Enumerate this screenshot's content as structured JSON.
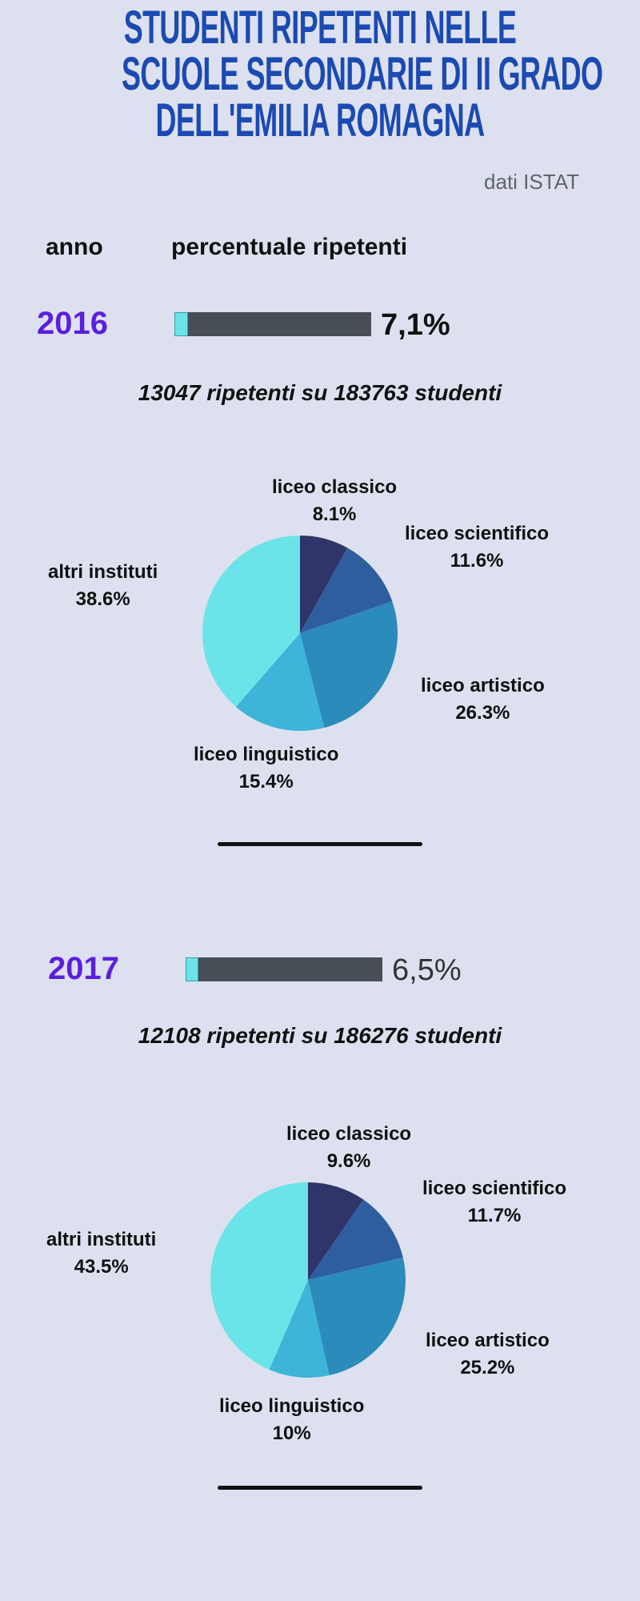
{
  "title_lines": [
    "STUDENTI RIPETENTI NELLE",
    "SCUOLE SECONDARIE DI II GRADO",
    "DELL'EMILIA ROMAGNA"
  ],
  "source": "dati ISTAT",
  "headers": {
    "year": "anno",
    "percent": "percentuale ripetenti"
  },
  "colors": {
    "background": "#dde1ef",
    "title": "#1b4ab2",
    "year": "#5a1fdc",
    "bar_track": "#474e56",
    "bar_fill": "#6be4e9"
  },
  "years": [
    {
      "year": "2016",
      "percent_label": "7,1%",
      "percent_value": 7.1,
      "summary": "13047 ripetenti su 183763 studenti"
    },
    {
      "year": "2017",
      "percent_label": "6,5%",
      "percent_value": 6.5,
      "summary": "12108 ripetenti su 186276 studenti"
    }
  ],
  "chart_data": [
    {
      "type": "pie",
      "year": "2016",
      "slices": [
        {
          "label": "liceo classico",
          "value": 8.1,
          "value_label": "8.1%",
          "color": "#2f3469"
        },
        {
          "label": "liceo scientifico",
          "value": 11.6,
          "value_label": "11.6%",
          "color": "#2e5e9e"
        },
        {
          "label": "liceo artistico",
          "value": 26.3,
          "value_label": "26.3%",
          "color": "#2b8bbb"
        },
        {
          "label": "liceo linguistico",
          "value": 15.4,
          "value_label": "15.4%",
          "color": "#3eb4d8"
        },
        {
          "label": "altri instituti",
          "value": 38.6,
          "value_label": "38.6%",
          "color": "#6be4e9"
        }
      ]
    },
    {
      "type": "pie",
      "year": "2017",
      "slices": [
        {
          "label": "liceo classico",
          "value": 9.6,
          "value_label": "9.6%",
          "color": "#2f3469"
        },
        {
          "label": "liceo scientifico",
          "value": 11.7,
          "value_label": "11.7%",
          "color": "#2e5e9e"
        },
        {
          "label": "liceo artistico",
          "value": 25.2,
          "value_label": "25.2%",
          "color": "#2b8bbb"
        },
        {
          "label": "liceo linguistico",
          "value": 10,
          "value_label": "10%",
          "color": "#3eb4d8"
        },
        {
          "label": "altri instituti",
          "value": 43.5,
          "value_label": "43.5%",
          "color": "#6be4e9"
        }
      ]
    }
  ]
}
